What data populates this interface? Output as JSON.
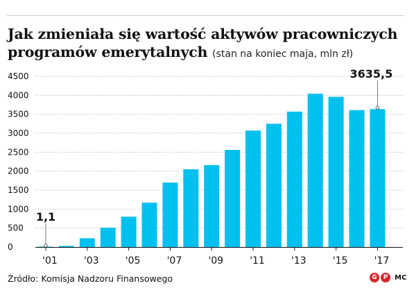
{
  "title": "Jak zmieniała się wartość aktywów pracowniczych programów emerytalnych",
  "subtitle": "(stan na koniec maja, mln zł)",
  "source": "Źródło: Komisja Nadzoru Finansowego",
  "logo": {
    "letters": [
      "G",
      "P"
    ],
    "color": "#d7262c"
  },
  "author": "MC",
  "colors": {
    "bar": "#00c0ef",
    "grid": "#bdbdbd",
    "text": "#111111"
  },
  "chart_data": {
    "type": "bar",
    "categories": [
      "2001",
      "2002",
      "2003",
      "2004",
      "2005",
      "2006",
      "2007",
      "2008",
      "2009",
      "2010",
      "2011",
      "2012",
      "2013",
      "2014",
      "2015",
      "2016",
      "2017"
    ],
    "values": [
      1.1,
      30,
      230,
      510,
      800,
      1170,
      1700,
      2050,
      2160,
      2560,
      3070,
      3250,
      3570,
      4040,
      3960,
      3610,
      3635.5
    ],
    "tick_labels": [
      "'01",
      "'03",
      "'05",
      "'07",
      "'09",
      "'11",
      "'13",
      "'15",
      "'17"
    ],
    "tick_positions": [
      "2001",
      "2003",
      "2005",
      "2007",
      "2009",
      "2011",
      "2013",
      "2015",
      "2017"
    ],
    "ylim": [
      0,
      4500
    ],
    "yticks": [
      0,
      500,
      1000,
      1500,
      2000,
      2500,
      3000,
      3500,
      4000,
      4500
    ],
    "grid": true,
    "annotations": [
      {
        "category": "2001",
        "text": "1,1"
      },
      {
        "category": "2017",
        "text": "3635,5"
      }
    ]
  }
}
